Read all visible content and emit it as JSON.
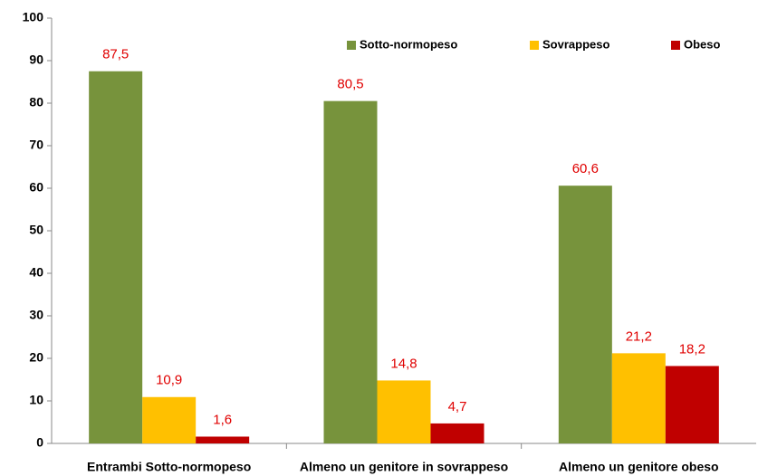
{
  "chart_data": {
    "type": "bar",
    "categories": [
      "Entrambi Sotto-normopeso",
      "Almeno un genitore in sovrappeso",
      "Almeno un genitore obeso"
    ],
    "series": [
      {
        "name": "Sotto-normopeso",
        "color": "#77933c",
        "values": [
          87.5,
          80.5,
          60.6
        ],
        "value_labels": [
          "87,5",
          "80,5",
          "60,6"
        ]
      },
      {
        "name": "Sovrappeso",
        "color": "#ffc000",
        "values": [
          10.9,
          14.8,
          21.2
        ],
        "value_labels": [
          "10,9",
          "14,8",
          "21,2"
        ]
      },
      {
        "name": "Obeso",
        "color": "#c00000",
        "values": [
          1.6,
          4.7,
          18.2
        ],
        "value_labels": [
          "1,6",
          "4,7",
          "18,2"
        ]
      }
    ],
    "ylim": [
      0,
      100
    ],
    "yticks": [
      0,
      10,
      20,
      30,
      40,
      50,
      60,
      70,
      80,
      90,
      100
    ],
    "grid": false,
    "legend": "top-right"
  }
}
